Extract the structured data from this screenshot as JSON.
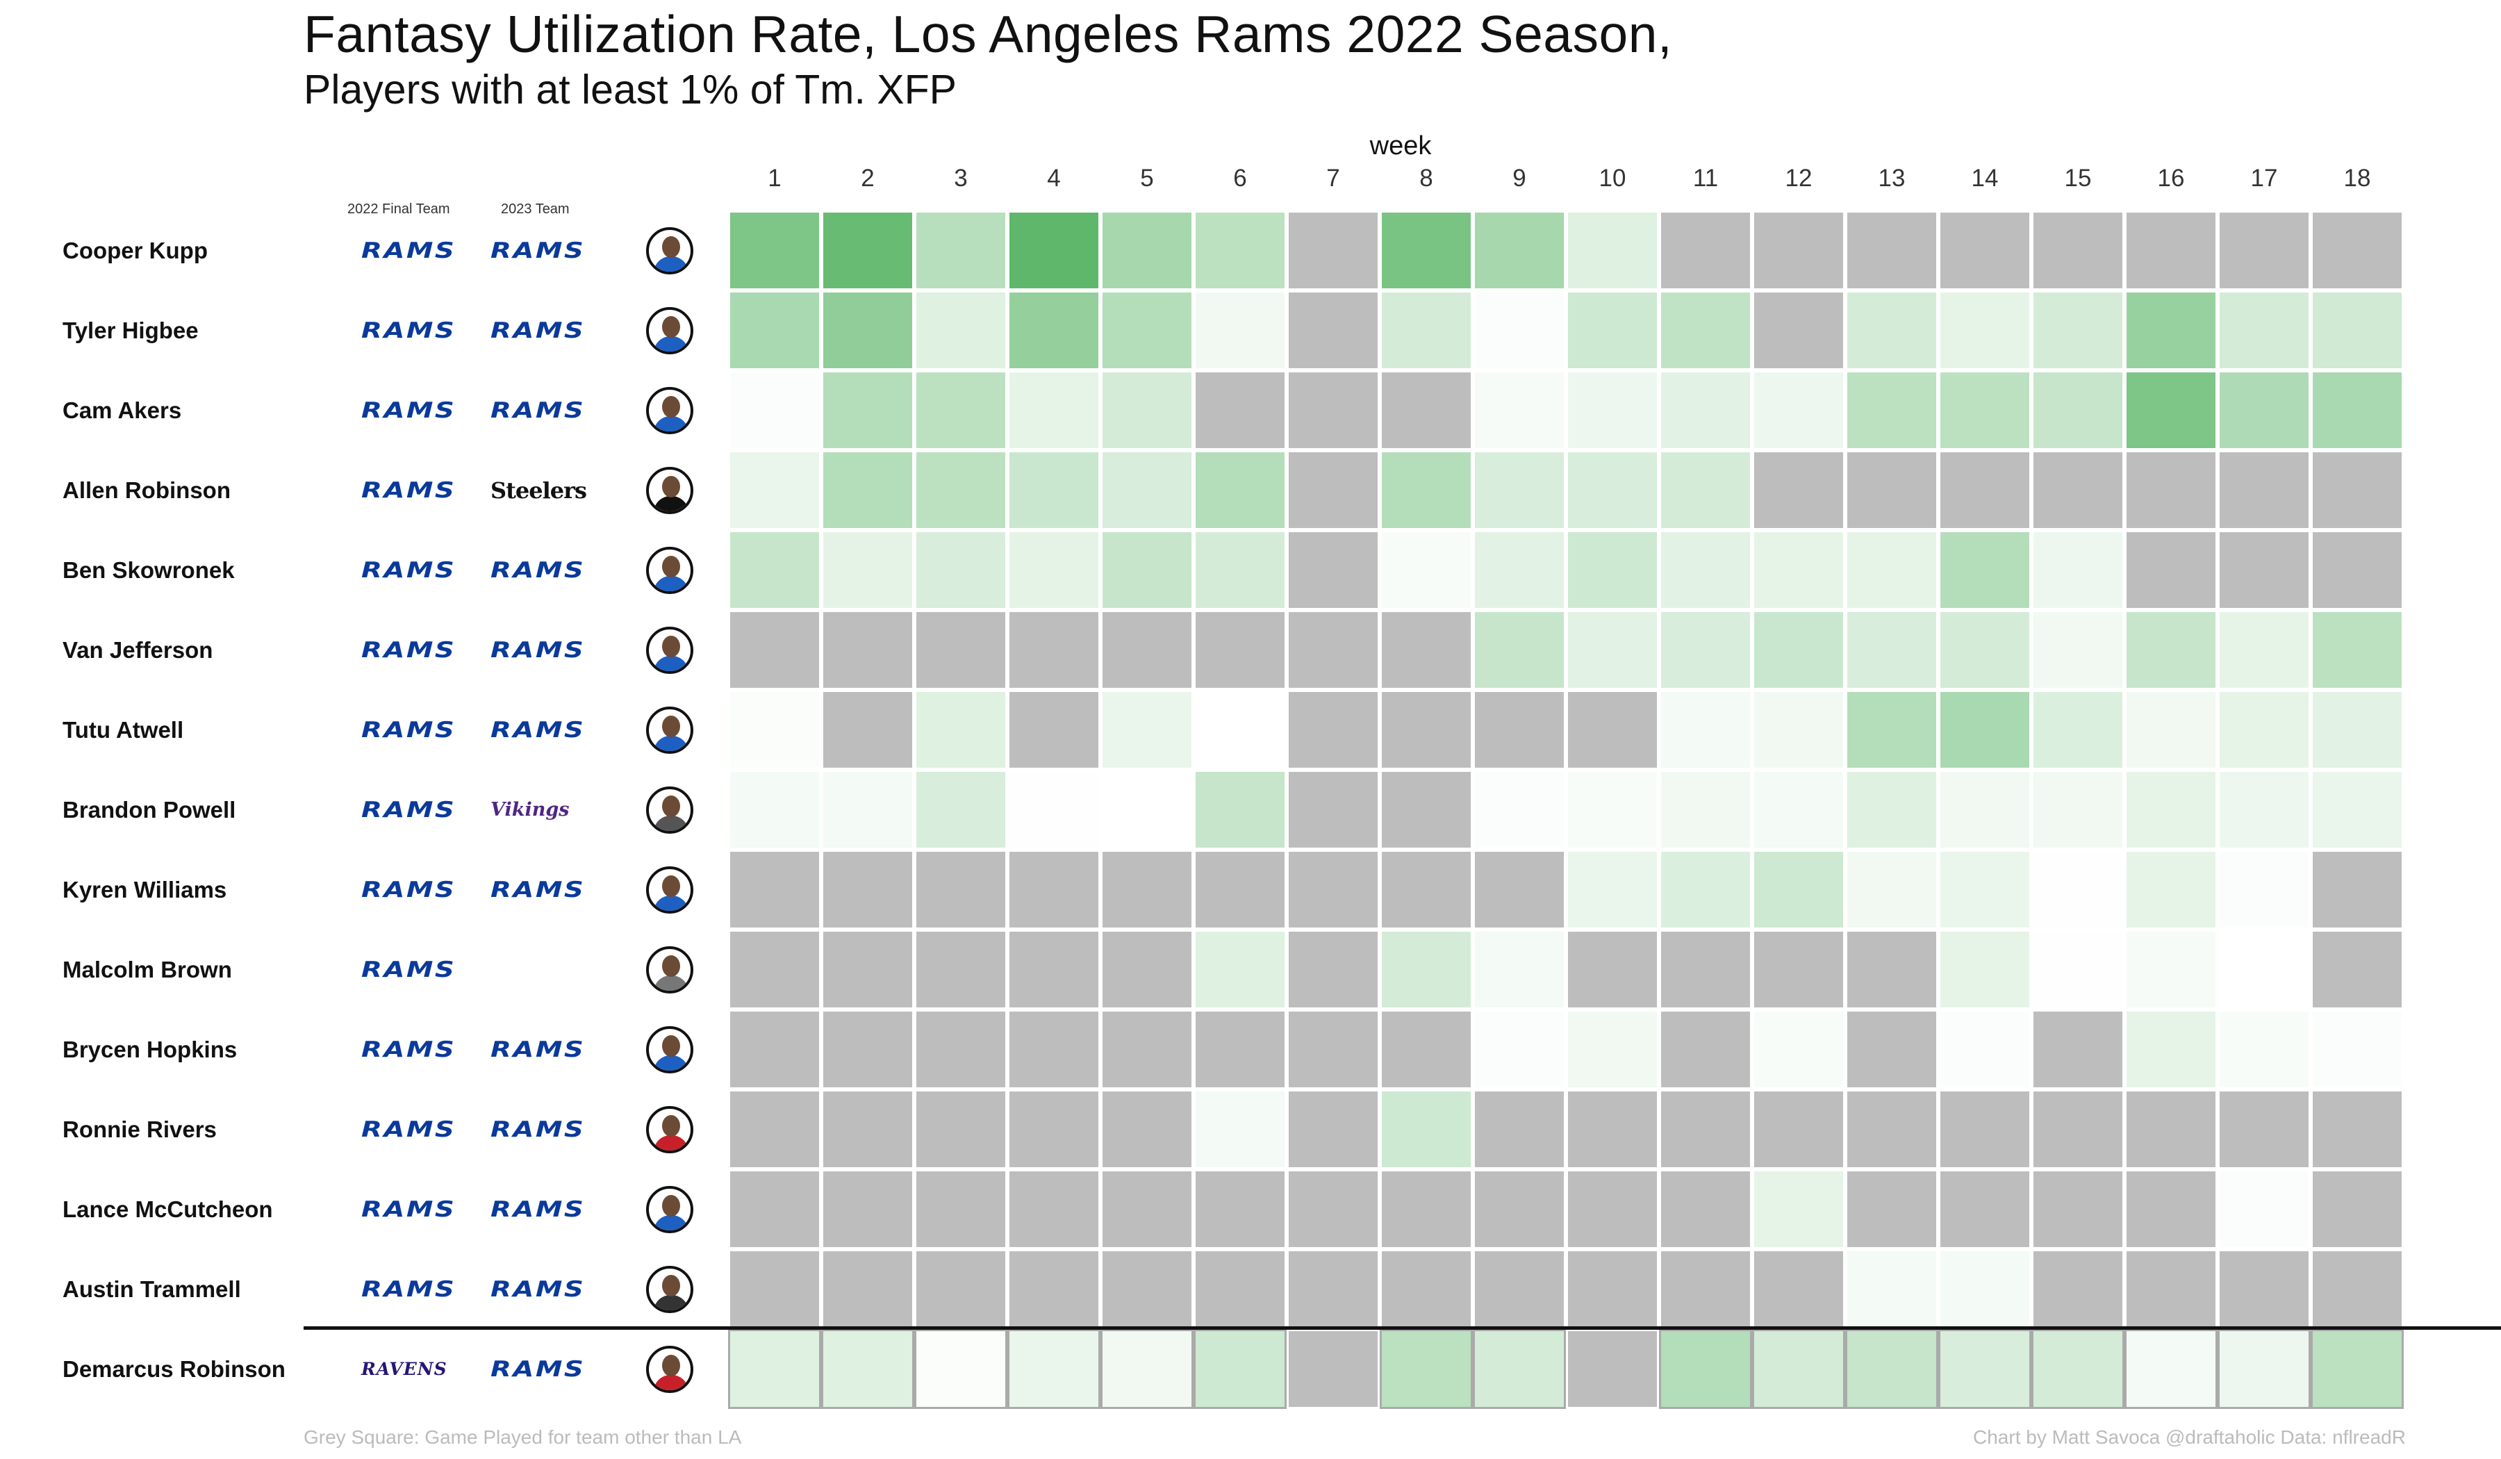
{
  "title": "Fantasy Utilization Rate, Los Angeles Rams 2022 Season,",
  "subtitle": "Players with at least 1% of Tm. XFP",
  "column_headers": {
    "final_team": "2022 Final Team",
    "team_2023": "2023 Team",
    "week": "week"
  },
  "footer": {
    "legend_note": "Grey Square: Game Played for team other than LA",
    "credit": "Chart by Matt Savoca    @draftaholic    Data: nflreadR"
  },
  "colors": {
    "grey": "#bdbdbd",
    "green_low": "#ffffff",
    "green_high": "#4caf5a",
    "rams_blue": "#0a3a9b",
    "divider": "#111111"
  },
  "team_logos": {
    "RAMS": "RAMS",
    "STEELERS": "Steelers",
    "VIKINGS": "Vikings",
    "RAVENS": "RAVENS"
  },
  "chart_data": {
    "type": "heatmap",
    "title": "Fantasy Utilization Rate, Los Angeles Rams 2022 Season,",
    "subtitle": "Players with at least 1% of Tm. XFP",
    "x_label": "week",
    "weeks": [
      "1",
      "2",
      "3",
      "4",
      "5",
      "6",
      "7",
      "8",
      "9",
      "10",
      "11",
      "12",
      "13",
      "14",
      "15",
      "16",
      "17",
      "18"
    ],
    "value_note": "values are utilization intensity 0-1; null = grey (game played for team other than LA / no game), empty = no cell",
    "rows": [
      {
        "player": "Cooper Kupp",
        "team_2022": "RAMS",
        "team_2023": "RAMS",
        "avatar_color": "#1e5fc2",
        "values": [
          0.72,
          0.85,
          0.4,
          0.9,
          0.5,
          0.38,
          null,
          0.75,
          0.5,
          0.18,
          null,
          null,
          null,
          null,
          null,
          null,
          null,
          null
        ]
      },
      {
        "player": "Tyler Higbee",
        "team_2022": "RAMS",
        "team_2023": "RAMS",
        "avatar_color": "#1e5fc2",
        "values": [
          0.48,
          0.62,
          0.18,
          0.6,
          0.42,
          0.08,
          null,
          0.24,
          0.02,
          0.28,
          0.35,
          null,
          0.24,
          0.14,
          0.24,
          0.58,
          0.24,
          0.26
        ]
      },
      {
        "player": "Cam Akers",
        "team_2022": "RAMS",
        "team_2023": "RAMS",
        "avatar_color": "#1e5fc2",
        "values": [
          0.02,
          0.42,
          0.38,
          0.14,
          0.24,
          null,
          null,
          null,
          0.05,
          0.1,
          0.16,
          0.1,
          0.38,
          0.38,
          0.32,
          0.72,
          0.45,
          0.48
        ]
      },
      {
        "player": "Allen Robinson",
        "team_2022": "RAMS",
        "team_2023": "STEELERS",
        "avatar_color": "#111111",
        "values": [
          0.12,
          0.42,
          0.38,
          0.3,
          0.22,
          0.42,
          null,
          0.42,
          0.22,
          0.22,
          0.24,
          null,
          null,
          null,
          null,
          null,
          null,
          null
        ]
      },
      {
        "player": "Ben Skowronek",
        "team_2022": "RAMS",
        "team_2023": "RAMS",
        "avatar_color": "#1e5fc2",
        "values": [
          0.32,
          0.15,
          0.22,
          0.15,
          0.32,
          0.24,
          null,
          0.04,
          0.16,
          0.28,
          0.16,
          0.14,
          0.14,
          0.42,
          0.1,
          null,
          null,
          null
        ]
      },
      {
        "player": "Van Jefferson",
        "team_2022": "RAMS",
        "team_2023": "RAMS",
        "avatar_color": "#1e5fc2",
        "values": [
          null,
          null,
          null,
          null,
          null,
          null,
          null,
          null,
          0.32,
          0.16,
          0.22,
          0.3,
          0.22,
          0.24,
          0.08,
          0.32,
          0.14,
          0.38
        ]
      },
      {
        "player": "Tutu Atwell",
        "team_2022": "RAMS",
        "team_2023": "RAMS",
        "avatar_color": "#1e5fc2",
        "values": [
          0.03,
          null,
          0.18,
          null,
          0.12,
          0.0,
          null,
          null,
          null,
          null,
          0.06,
          0.08,
          0.42,
          0.48,
          0.2,
          0.08,
          0.14,
          0.16
        ]
      },
      {
        "player": "Brandon Powell",
        "team_2022": "RAMS",
        "team_2023": "VIKINGS",
        "avatar_color": "#555555",
        "values": [
          0.06,
          0.06,
          0.22,
          0.01,
          0.0,
          0.32,
          null,
          null,
          0.02,
          0.04,
          0.08,
          0.06,
          0.18,
          0.08,
          0.08,
          0.14,
          0.1,
          0.12
        ]
      },
      {
        "player": "Kyren Williams",
        "team_2022": "RAMS",
        "team_2023": "RAMS",
        "avatar_color": "#1e5fc2",
        "values": [
          null,
          null,
          null,
          null,
          null,
          null,
          null,
          null,
          null,
          0.12,
          0.2,
          0.28,
          0.08,
          0.12,
          0.01,
          0.14,
          0.02,
          null
        ]
      },
      {
        "player": "Malcolm Brown",
        "team_2022": "RAMS",
        "team_2023": "",
        "avatar_color": "#777777",
        "values": [
          null,
          null,
          null,
          null,
          null,
          0.18,
          null,
          0.24,
          0.06,
          null,
          null,
          null,
          null,
          0.14,
          0.01,
          0.05,
          0.0,
          null
        ]
      },
      {
        "player": "Brycen Hopkins",
        "team_2022": "RAMS",
        "team_2023": "RAMS",
        "avatar_color": "#1e5fc2",
        "values": [
          null,
          null,
          null,
          null,
          null,
          null,
          null,
          null,
          0.02,
          0.08,
          null,
          0.04,
          null,
          0.02,
          null,
          0.14,
          0.04,
          0.02
        ]
      },
      {
        "player": "Ronnie Rivers",
        "team_2022": "RAMS",
        "team_2023": "RAMS",
        "avatar_color": "#c8202a",
        "values": [
          null,
          null,
          null,
          null,
          null,
          0.06,
          null,
          0.28,
          null,
          null,
          null,
          null,
          null,
          null,
          null,
          null,
          null,
          null
        ]
      },
      {
        "player": "Lance McCutcheon",
        "team_2022": "RAMS",
        "team_2023": "RAMS",
        "avatar_color": "#1e5fc2",
        "values": [
          null,
          null,
          null,
          null,
          null,
          null,
          null,
          null,
          null,
          null,
          null,
          0.14,
          null,
          null,
          null,
          null,
          0.02,
          null
        ]
      },
      {
        "player": "Austin Trammell",
        "team_2022": "RAMS",
        "team_2023": "RAMS",
        "avatar_color": "#333333",
        "values": [
          null,
          null,
          null,
          null,
          null,
          null,
          null,
          null,
          null,
          null,
          null,
          null,
          0.06,
          0.06,
          null,
          null,
          null,
          null
        ]
      },
      {
        "player": "Demarcus Robinson",
        "team_2022": "RAVENS",
        "team_2023": "RAMS",
        "avatar_color": "#c8202a",
        "values": [
          0.18,
          0.18,
          0.03,
          0.12,
          0.08,
          0.28,
          null,
          0.38,
          0.24,
          null,
          0.42,
          0.24,
          0.32,
          0.22,
          0.24,
          0.06,
          0.1,
          0.38
        ]
      }
    ]
  }
}
